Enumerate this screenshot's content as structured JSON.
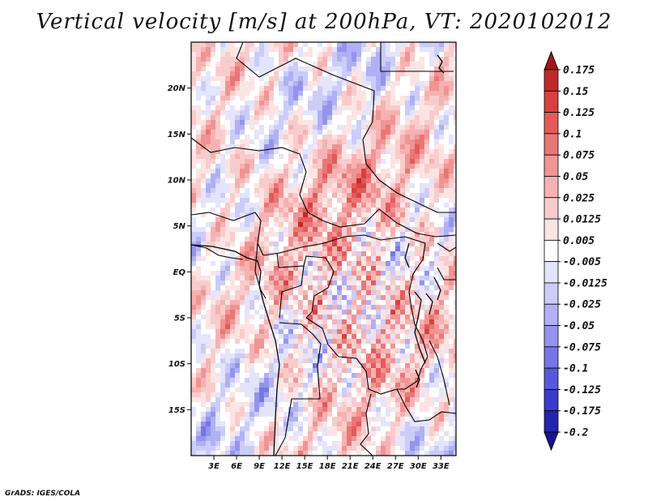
{
  "map": {
    "title": "Vertical velocity [m/s] at 200hPa, VT: 2020102012",
    "variable": "Vertical velocity",
    "units": "m/s",
    "level": "200hPa",
    "valid_time": "2020102012",
    "lon_range": [
      0,
      35
    ],
    "lat_range": [
      -20,
      25
    ],
    "lat_ticks": [
      {
        "value": 20,
        "label": "20N"
      },
      {
        "value": 15,
        "label": "15N"
      },
      {
        "value": 10,
        "label": "10N"
      },
      {
        "value": 5,
        "label": "5N"
      },
      {
        "value": 0,
        "label": "EQ"
      },
      {
        "value": -5,
        "label": "5S"
      },
      {
        "value": -10,
        "label": "10S"
      },
      {
        "value": -15,
        "label": "15S"
      }
    ],
    "lon_ticks": [
      {
        "value": 3,
        "label": "3E"
      },
      {
        "value": 6,
        "label": "6E"
      },
      {
        "value": 9,
        "label": "9E"
      },
      {
        "value": 12,
        "label": "12E"
      },
      {
        "value": 15,
        "label": "15E"
      },
      {
        "value": 18,
        "label": "18E"
      },
      {
        "value": 21,
        "label": "21E"
      },
      {
        "value": 24,
        "label": "24E"
      },
      {
        "value": 27,
        "label": "27E"
      },
      {
        "value": 30,
        "label": "30E"
      },
      {
        "value": 33,
        "label": "33E"
      }
    ]
  },
  "colorbar": {
    "labels": [
      "0.175",
      "0.15",
      "0.125",
      "0.1",
      "0.075",
      "0.05",
      "0.025",
      "0.0125",
      "0.005",
      "-0.005",
      "-0.0125",
      "-0.025",
      "-0.05",
      "-0.075",
      "-0.1",
      "-0.125",
      "-0.175",
      "-0.2"
    ],
    "colors": [
      "#a01818",
      "#c02a2a",
      "#d84040",
      "#e45a5a",
      "#ea7676",
      "#f09494",
      "#f6b2b2",
      "#f9cccc",
      "#fce4e4",
      "#ffffff",
      "#e4e4fc",
      "#ccccf8",
      "#b0b0f4",
      "#9494ee",
      "#7676e6",
      "#5858dc",
      "#3a3acc",
      "#2424b0",
      "#14149a"
    ]
  },
  "footer": "GrADS: IGES/COLA"
}
